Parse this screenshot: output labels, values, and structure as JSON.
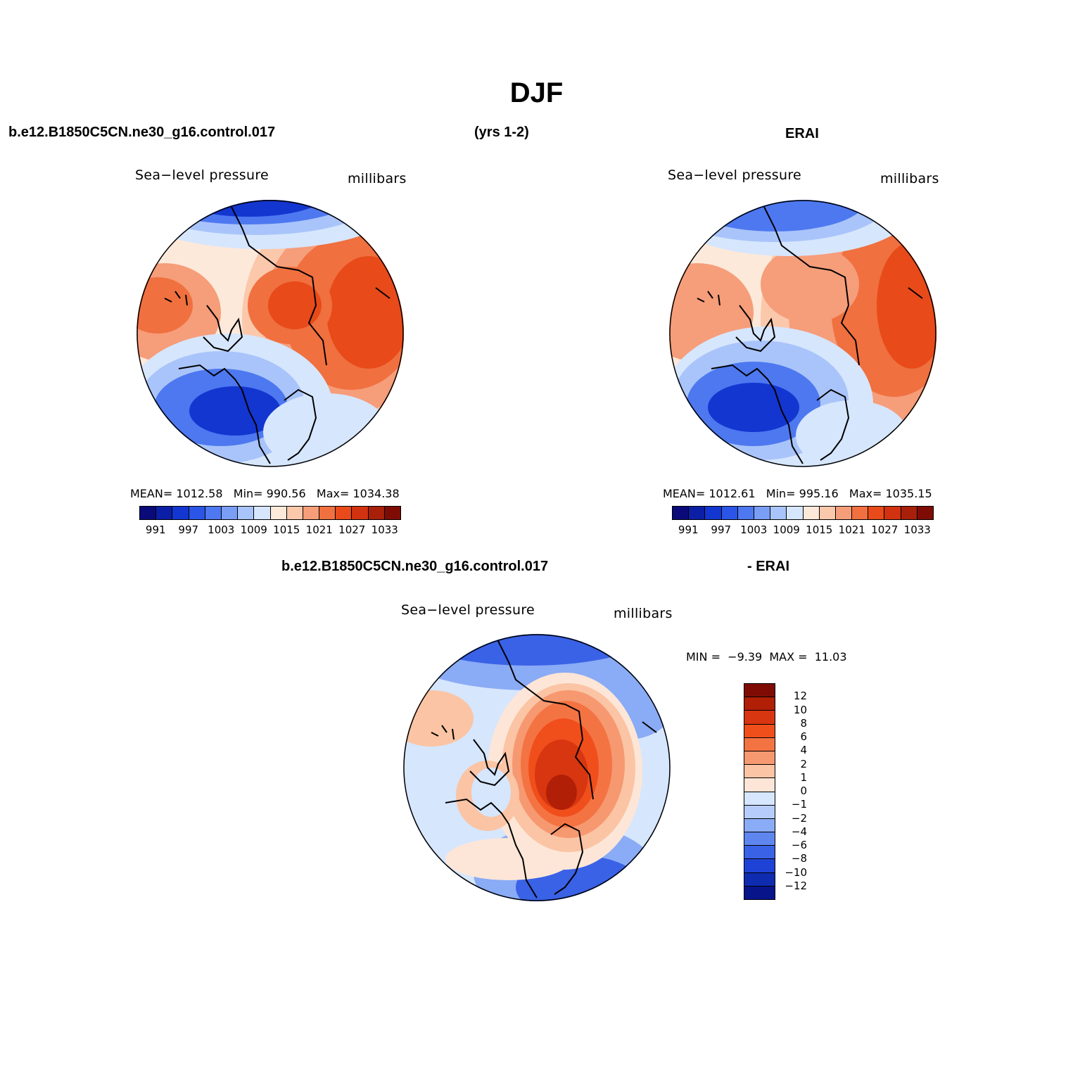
{
  "page": {
    "title": "DJF",
    "case_name": "b.e12.B1850C5CN.ne30_g16.control.017",
    "years": "(yrs 1-2)",
    "obs_name": "ERAI"
  },
  "panels": {
    "model": {
      "variable": "Sea−level  pressure",
      "units": "millibars",
      "mean_label": "MEAN=",
      "mean": "1012.58",
      "min_label": "Min=",
      "min": "990.56",
      "max_label": "Max=",
      "max": "1034.38"
    },
    "obs": {
      "variable": "Sea−level  pressure",
      "units": "millibars",
      "mean_label": "MEAN=",
      "mean": "1012.61",
      "min_label": "Min=",
      "min": "995.16",
      "max_label": "Max=",
      "max": "1035.15"
    },
    "diff": {
      "case": "b.e12.B1850C5CN.ne30_g16.control.017",
      "minus_obs": "- ERAI",
      "variable": "Sea−level  pressure",
      "units": "millibars",
      "min_label": "MIN =",
      "min": "−9.39",
      "max_label": "MAX =",
      "max": "11.03"
    }
  },
  "colorbars": {
    "slp": {
      "colors": [
        "#0a0a7a",
        "#0b1fa6",
        "#1336d0",
        "#2a55e6",
        "#4d78f0",
        "#7a9df5",
        "#a9c4fa",
        "#d6e6fd",
        "#fde9da",
        "#fbc8ab",
        "#f69d7a",
        "#f0703f",
        "#e84a1a",
        "#d23210",
        "#a8200a",
        "#7e0c04"
      ],
      "labels": [
        "991",
        "997",
        "1003",
        "1009",
        "1015",
        "1021",
        "1027",
        "1033"
      ]
    },
    "diff": {
      "colors_top_to_bottom": [
        "#7e0c04",
        "#b01f06",
        "#d83610",
        "#f04f1c",
        "#f47342",
        "#f69870",
        "#fbc4a4",
        "#fde6d7",
        "#d6e6fd",
        "#b6cdfb",
        "#8aabf5",
        "#5e86ee",
        "#3a62e6",
        "#1f42d6",
        "#0f2cb0",
        "#08148a"
      ],
      "labels": [
        "12",
        "10",
        "8",
        "6",
        "4",
        "2",
        "1",
        "0",
        "−1",
        "−2",
        "−4",
        "−6",
        "−8",
        "−10",
        "−12"
      ]
    }
  },
  "icons": {
    "map_projection": "polar-stereographic-north",
    "coastline_color": "#000000"
  }
}
